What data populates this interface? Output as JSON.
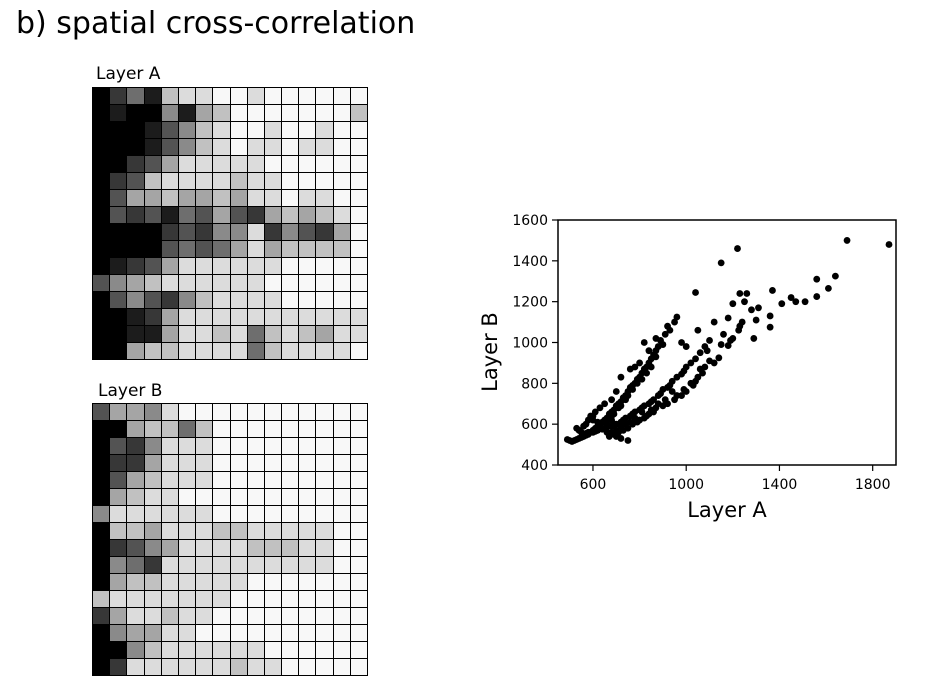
{
  "title": "b) spatial cross-correlation",
  "layer_a": {
    "label": "Layer A",
    "rows": 16,
    "cols": 16,
    "shades": [
      [
        0,
        2,
        4,
        1,
        7,
        8,
        8,
        9,
        9,
        8,
        9,
        9,
        9,
        9,
        9,
        9
      ],
      [
        0,
        1,
        0,
        0,
        5,
        1,
        6,
        7,
        9,
        9,
        9,
        9,
        9,
        9,
        9,
        7
      ],
      [
        0,
        0,
        0,
        1,
        3,
        5,
        7,
        8,
        9,
        9,
        8,
        9,
        9,
        8,
        9,
        9
      ],
      [
        0,
        0,
        0,
        1,
        3,
        5,
        7,
        8,
        9,
        8,
        8,
        9,
        8,
        8,
        9,
        9
      ],
      [
        0,
        0,
        2,
        3,
        6,
        8,
        8,
        8,
        8,
        8,
        9,
        9,
        9,
        9,
        9,
        9
      ],
      [
        0,
        2,
        3,
        7,
        8,
        8,
        8,
        8,
        7,
        8,
        8,
        9,
        9,
        9,
        9,
        9
      ],
      [
        0,
        3,
        6,
        6,
        7,
        6,
        6,
        7,
        6,
        8,
        8,
        9,
        8,
        8,
        9,
        9
      ],
      [
        0,
        3,
        2,
        3,
        1,
        4,
        3,
        6,
        3,
        2,
        6,
        7,
        6,
        7,
        8,
        9
      ],
      [
        0,
        0,
        0,
        0,
        2,
        3,
        2,
        5,
        5,
        8,
        2,
        5,
        3,
        2,
        6,
        9
      ],
      [
        0,
        0,
        0,
        0,
        3,
        4,
        3,
        4,
        6,
        8,
        6,
        7,
        7,
        7,
        7,
        9
      ],
      [
        0,
        1,
        2,
        3,
        6,
        8,
        8,
        8,
        8,
        8,
        8,
        9,
        9,
        9,
        9,
        9
      ],
      [
        3,
        5,
        6,
        7,
        8,
        8,
        8,
        8,
        8,
        8,
        9,
        9,
        9,
        9,
        9,
        9
      ],
      [
        0,
        3,
        5,
        3,
        2,
        5,
        7,
        8,
        8,
        8,
        8,
        9,
        9,
        9,
        9,
        9
      ],
      [
        0,
        0,
        1,
        2,
        6,
        8,
        8,
        8,
        8,
        8,
        8,
        8,
        8,
        8,
        8,
        8
      ],
      [
        0,
        0,
        1,
        1,
        6,
        8,
        8,
        7,
        8,
        4,
        7,
        8,
        7,
        6,
        8,
        8
      ],
      [
        0,
        0,
        6,
        7,
        7,
        8,
        8,
        8,
        8,
        4,
        7,
        8,
        8,
        8,
        8,
        9
      ]
    ]
  },
  "layer_b": {
    "label": "Layer B",
    "rows": 16,
    "cols": 16,
    "shades": [
      [
        3,
        6,
        6,
        5,
        8,
        9,
        9,
        9,
        9,
        9,
        9,
        9,
        9,
        9,
        9,
        9
      ],
      [
        0,
        0,
        6,
        7,
        7,
        4,
        7,
        9,
        9,
        9,
        9,
        9,
        9,
        9,
        9,
        9
      ],
      [
        0,
        3,
        2,
        5,
        8,
        8,
        8,
        9,
        9,
        9,
        9,
        9,
        9,
        9,
        9,
        9
      ],
      [
        0,
        2,
        2,
        6,
        8,
        8,
        8,
        9,
        9,
        9,
        9,
        9,
        9,
        9,
        9,
        9
      ],
      [
        0,
        3,
        6,
        7,
        8,
        8,
        8,
        9,
        9,
        9,
        9,
        9,
        9,
        9,
        9,
        9
      ],
      [
        0,
        6,
        7,
        8,
        8,
        9,
        9,
        9,
        9,
        9,
        9,
        9,
        9,
        9,
        9,
        9
      ],
      [
        5,
        8,
        8,
        8,
        8,
        8,
        8,
        9,
        9,
        9,
        9,
        9,
        9,
        9,
        9,
        9
      ],
      [
        0,
        7,
        7,
        6,
        8,
        8,
        8,
        7,
        7,
        8,
        8,
        8,
        8,
        8,
        9,
        9
      ],
      [
        0,
        2,
        3,
        5,
        6,
        8,
        8,
        8,
        8,
        7,
        7,
        7,
        8,
        8,
        9,
        9
      ],
      [
        0,
        5,
        4,
        2,
        8,
        8,
        8,
        8,
        8,
        8,
        8,
        8,
        8,
        8,
        9,
        9
      ],
      [
        0,
        6,
        7,
        7,
        8,
        8,
        8,
        8,
        8,
        9,
        9,
        9,
        9,
        9,
        9,
        9
      ],
      [
        7,
        8,
        8,
        8,
        8,
        8,
        8,
        8,
        9,
        9,
        9,
        9,
        9,
        9,
        9,
        9
      ],
      [
        2,
        6,
        8,
        8,
        7,
        8,
        8,
        9,
        9,
        9,
        9,
        9,
        9,
        9,
        9,
        9
      ],
      [
        0,
        5,
        6,
        6,
        8,
        8,
        9,
        9,
        9,
        9,
        9,
        9,
        9,
        9,
        9,
        9
      ],
      [
        0,
        0,
        5,
        7,
        8,
        8,
        8,
        8,
        8,
        8,
        9,
        9,
        9,
        9,
        9,
        9
      ],
      [
        0,
        2,
        8,
        8,
        8,
        8,
        8,
        8,
        7,
        8,
        8,
        9,
        9,
        9,
        9,
        9
      ]
    ]
  },
  "chart_data": {
    "type": "scatter",
    "xlabel": "Layer A",
    "ylabel": "Layer B",
    "xlim": [
      450,
      1900
    ],
    "ylim": [
      400,
      1600
    ],
    "xticks": [
      600,
      1000,
      1400,
      1800
    ],
    "yticks": [
      400,
      600,
      800,
      1000,
      1200,
      1400,
      1600
    ],
    "grid": false,
    "points": [
      [
        1870,
        1480
      ],
      [
        1690,
        1500
      ],
      [
        1640,
        1325
      ],
      [
        1610,
        1265
      ],
      [
        1560,
        1310
      ],
      [
        1560,
        1225
      ],
      [
        1510,
        1200
      ],
      [
        1470,
        1200
      ],
      [
        1450,
        1220
      ],
      [
        1410,
        1190
      ],
      [
        1370,
        1255
      ],
      [
        1360,
        1130
      ],
      [
        1360,
        1075
      ],
      [
        1310,
        1170
      ],
      [
        1300,
        1110
      ],
      [
        1290,
        1020
      ],
      [
        1280,
        1160
      ],
      [
        1260,
        1240
      ],
      [
        1250,
        1200
      ],
      [
        1240,
        1100
      ],
      [
        1230,
        1080
      ],
      [
        1225,
        1060
      ],
      [
        1220,
        1460
      ],
      [
        1200,
        1190
      ],
      [
        1200,
        1020
      ],
      [
        1190,
        1010
      ],
      [
        1180,
        985
      ],
      [
        1160,
        1040
      ],
      [
        1150,
        990
      ],
      [
        1140,
        925
      ],
      [
        1120,
        900
      ],
      [
        1100,
        910
      ],
      [
        1090,
        960
      ],
      [
        1080,
        880
      ],
      [
        1070,
        850
      ],
      [
        1060,
        870
      ],
      [
        1050,
        830
      ],
      [
        1040,
        810
      ],
      [
        1030,
        790
      ],
      [
        1020,
        800
      ],
      [
        1000,
        760
      ],
      [
        990,
        770
      ],
      [
        980,
        740
      ],
      [
        960,
        740
      ],
      [
        950,
        720
      ],
      [
        940,
        760
      ],
      [
        920,
        700
      ],
      [
        910,
        720
      ],
      [
        900,
        690
      ],
      [
        880,
        700
      ],
      [
        870,
        680
      ],
      [
        860,
        660
      ],
      [
        850,
        670
      ],
      [
        840,
        650
      ],
      [
        830,
        640
      ],
      [
        820,
        630
      ],
      [
        810,
        660
      ],
      [
        800,
        620
      ],
      [
        790,
        610
      ],
      [
        780,
        630
      ],
      [
        770,
        600
      ],
      [
        760,
        610
      ],
      [
        750,
        580
      ],
      [
        740,
        600
      ],
      [
        730,
        570
      ],
      [
        720,
        590
      ],
      [
        710,
        560
      ],
      [
        700,
        570
      ],
      [
        690,
        550
      ],
      [
        680,
        560
      ],
      [
        670,
        540
      ],
      [
        660,
        560
      ],
      [
        1150,
        1390
      ],
      [
        1040,
        1245
      ],
      [
        960,
        1125
      ],
      [
        950,
        1100
      ],
      [
        930,
        1060
      ],
      [
        910,
        1040
      ],
      [
        890,
        1010
      ],
      [
        880,
        980
      ],
      [
        870,
        960
      ],
      [
        860,
        940
      ],
      [
        850,
        920
      ],
      [
        840,
        900
      ],
      [
        830,
        880
      ],
      [
        820,
        870
      ],
      [
        810,
        850
      ],
      [
        800,
        830
      ],
      [
        790,
        820
      ],
      [
        780,
        800
      ],
      [
        770,
        790
      ],
      [
        760,
        780
      ],
      [
        750,
        760
      ],
      [
        740,
        740
      ],
      [
        730,
        730
      ],
      [
        720,
        710
      ],
      [
        710,
        700
      ],
      [
        700,
        690
      ],
      [
        690,
        670
      ],
      [
        680,
        660
      ],
      [
        670,
        650
      ],
      [
        660,
        630
      ],
      [
        650,
        620
      ],
      [
        640,
        610
      ],
      [
        630,
        600
      ],
      [
        620,
        590
      ],
      [
        610,
        580
      ],
      [
        600,
        570
      ],
      [
        590,
        560
      ],
      [
        580,
        550
      ],
      [
        570,
        545
      ],
      [
        560,
        540
      ],
      [
        550,
        535
      ],
      [
        540,
        530
      ],
      [
        530,
        525
      ],
      [
        520,
        520
      ],
      [
        510,
        515
      ],
      [
        500,
        520
      ],
      [
        490,
        525
      ],
      [
        1100,
        1010
      ],
      [
        1080,
        980
      ],
      [
        1060,
        950
      ],
      [
        1040,
        920
      ],
      [
        1020,
        900
      ],
      [
        1000,
        880
      ],
      [
        990,
        860
      ],
      [
        980,
        845
      ],
      [
        960,
        830
      ],
      [
        940,
        810
      ],
      [
        930,
        790
      ],
      [
        920,
        780
      ],
      [
        900,
        770
      ],
      [
        890,
        750
      ],
      [
        880,
        740
      ],
      [
        860,
        720
      ],
      [
        850,
        710
      ],
      [
        840,
        700
      ],
      [
        820,
        690
      ],
      [
        810,
        680
      ],
      [
        800,
        670
      ],
      [
        780,
        660
      ],
      [
        770,
        650
      ],
      [
        760,
        640
      ],
      [
        740,
        630
      ],
      [
        730,
        620
      ],
      [
        720,
        610
      ],
      [
        700,
        600
      ],
      [
        690,
        600
      ],
      [
        680,
        590
      ],
      [
        660,
        585
      ],
      [
        650,
        580
      ],
      [
        640,
        575
      ],
      [
        620,
        570
      ],
      [
        610,
        565
      ],
      [
        600,
        560
      ],
      [
        580,
        560
      ],
      [
        570,
        555
      ],
      [
        560,
        550
      ],
      [
        550,
        560
      ],
      [
        540,
        570
      ],
      [
        530,
        580
      ],
      [
        900,
        990
      ],
      [
        870,
        930
      ],
      [
        850,
        880
      ],
      [
        830,
        850
      ],
      [
        810,
        820
      ],
      [
        790,
        800
      ],
      [
        770,
        770
      ],
      [
        750,
        740
      ],
      [
        740,
        720
      ],
      [
        720,
        690
      ],
      [
        710,
        680
      ],
      [
        690,
        650
      ],
      [
        680,
        640
      ],
      [
        660,
        620
      ],
      [
        650,
        610
      ],
      [
        630,
        600
      ],
      [
        620,
        610
      ],
      [
        600,
        620
      ],
      [
        590,
        640
      ],
      [
        580,
        620
      ],
      [
        570,
        600
      ],
      [
        560,
        590
      ],
      [
        720,
        830
      ],
      [
        760,
        870
      ],
      [
        800,
        900
      ],
      [
        840,
        960
      ],
      [
        870,
        1020
      ],
      [
        920,
        1080
      ],
      [
        980,
        1000
      ],
      [
        1000,
        980
      ],
      [
        1050,
        1060
      ],
      [
        1120,
        1100
      ],
      [
        1180,
        1120
      ],
      [
        1230,
        1240
      ],
      [
        780,
        880
      ],
      [
        820,
        1000
      ],
      [
        700,
        760
      ],
      [
        680,
        720
      ],
      [
        650,
        700
      ],
      [
        630,
        680
      ],
      [
        610,
        660
      ],
      [
        600,
        640
      ],
      [
        750,
        520
      ],
      [
        720,
        530
      ],
      [
        700,
        540
      ],
      [
        690,
        600
      ],
      [
        680,
        620
      ],
      [
        660,
        600
      ]
    ]
  }
}
